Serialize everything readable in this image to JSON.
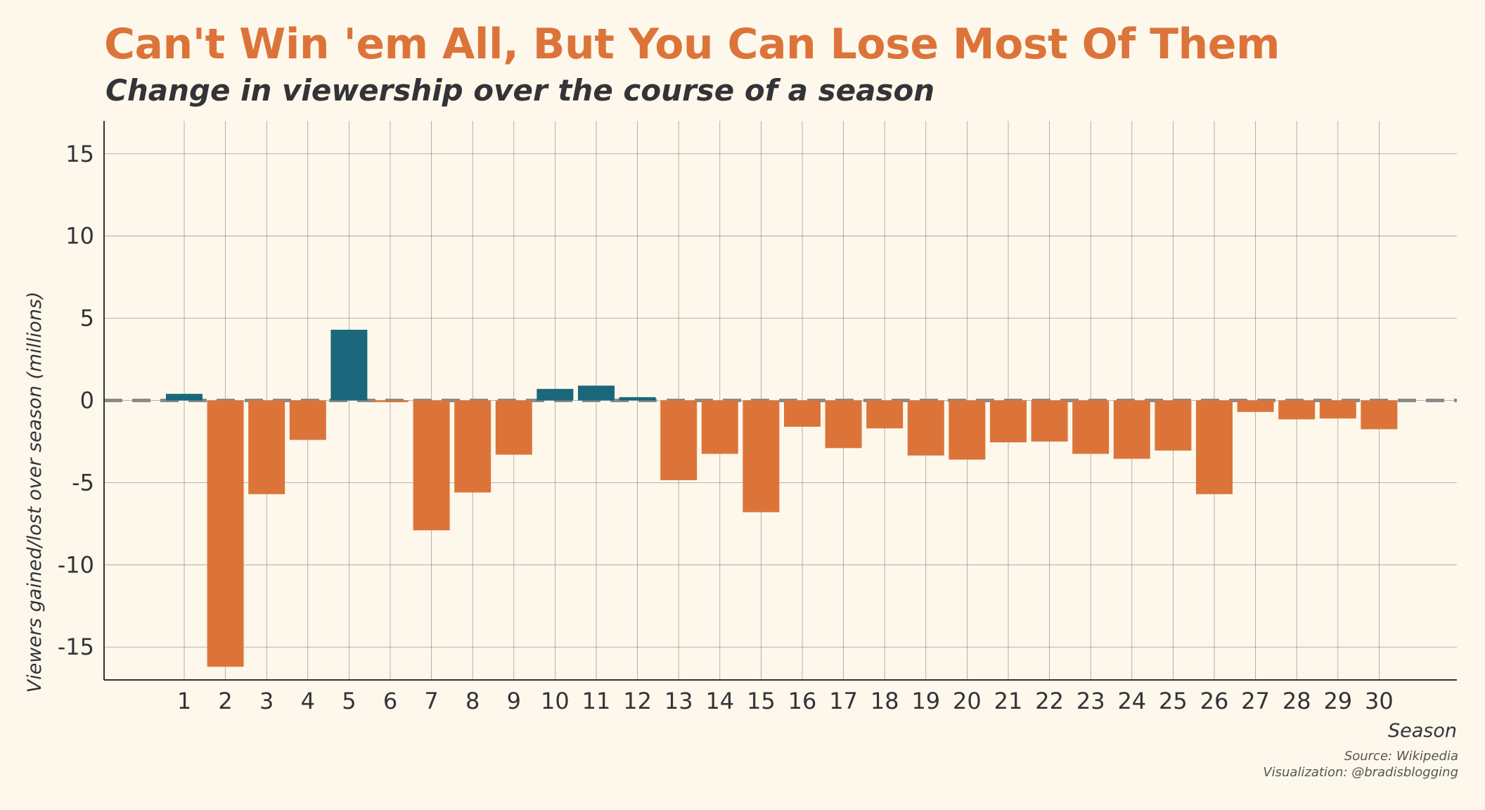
{
  "chart_data": {
    "type": "bar",
    "title": "Can't Win 'em All, But You Can Lose Most Of Them",
    "subtitle": "Change in viewership over the course of a season",
    "xlabel": "Season",
    "ylabel": "Viewers gained/lost over season (millions)",
    "source": "Source: Wikipedia",
    "credit": "Visualization: @bradisblogging",
    "categories": [
      "1",
      "2",
      "3",
      "4",
      "5",
      "6",
      "7",
      "8",
      "9",
      "10",
      "11",
      "12",
      "13",
      "14",
      "15",
      "16",
      "17",
      "18",
      "19",
      "20",
      "21",
      "22",
      "23",
      "24",
      "25",
      "26",
      "27",
      "28",
      "29",
      "30"
    ],
    "values": [
      0.4,
      -16.2,
      -5.7,
      -2.4,
      4.3,
      -0.1,
      -7.9,
      -5.6,
      -3.3,
      0.7,
      0.9,
      0.2,
      -4.85,
      -3.25,
      -6.8,
      -1.6,
      -2.9,
      -1.7,
      -3.35,
      -3.6,
      -2.55,
      -2.5,
      -3.25,
      -3.55,
      -3.05,
      -5.7,
      -0.7,
      -1.15,
      -1.1,
      -1.75
    ],
    "ylim": [
      -17,
      17
    ],
    "yticks": [
      15,
      10,
      5,
      0,
      -5,
      -10,
      -15
    ],
    "ytick_labels": [
      "15",
      "10",
      "5",
      "0",
      "-5",
      "-10",
      "-15"
    ],
    "grid": true,
    "reference_line": 0,
    "colors": {
      "positive": "#1b677c",
      "negative": "#dc743a",
      "zero_line": "#8a8a8a",
      "grid": "#555555",
      "axis": "#333338",
      "background": "#fdf8eb"
    }
  }
}
